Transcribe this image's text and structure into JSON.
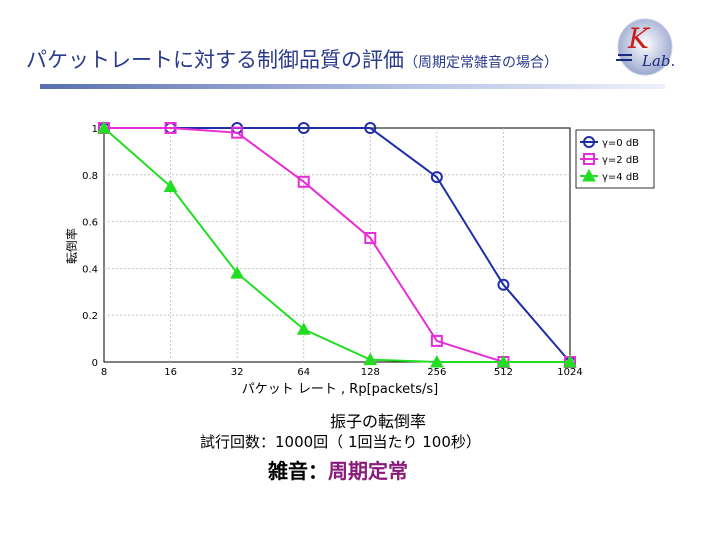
{
  "slide": {
    "title_main": "パケットレートに対する制御品質の評価",
    "title_sub": "（周期定常雑音の場合）",
    "logo_letters": "KLab."
  },
  "notes": {
    "line1": "振子の転倒率",
    "line2": "試行回数：1000回（ 1回当たり 100秒）",
    "line3_label": "雑音：",
    "line3_value": "周期定常"
  },
  "colors": {
    "series1": "#1f2ea8",
    "series2": "#e62fd6",
    "series3": "#22dd22",
    "title": "#2a3a8c"
  },
  "chart_data": {
    "type": "line",
    "x": [
      8,
      16,
      32,
      64,
      128,
      256,
      512,
      1024
    ],
    "x_ticks": [
      "8",
      "16",
      "32",
      "64",
      "128",
      "256",
      "512",
      "1024"
    ],
    "x_scale": "log2",
    "xlabel": "パケット レート , Rp[packets/s]",
    "ylabel": "転倒率",
    "ylim": [
      0,
      1
    ],
    "y_ticks": [
      "0",
      "0.2",
      "0.4",
      "0.6",
      "0.8",
      "1"
    ],
    "grid": true,
    "legend": "top-right",
    "series": [
      {
        "name": "γ=0 dB",
        "marker": "circle",
        "color": "#1f2ea8",
        "values": [
          1.0,
          1.0,
          1.0,
          1.0,
          1.0,
          0.79,
          0.33,
          0.0
        ]
      },
      {
        "name": "γ=2 dB",
        "marker": "square",
        "color": "#e62fd6",
        "values": [
          1.0,
          1.0,
          0.98,
          0.77,
          0.53,
          0.09,
          0.0,
          0.0
        ]
      },
      {
        "name": "γ=4 dB",
        "marker": "triangle",
        "color": "#22dd22",
        "values": [
          1.0,
          0.75,
          0.38,
          0.14,
          0.01,
          0.0,
          0.0,
          0.0
        ]
      }
    ]
  }
}
